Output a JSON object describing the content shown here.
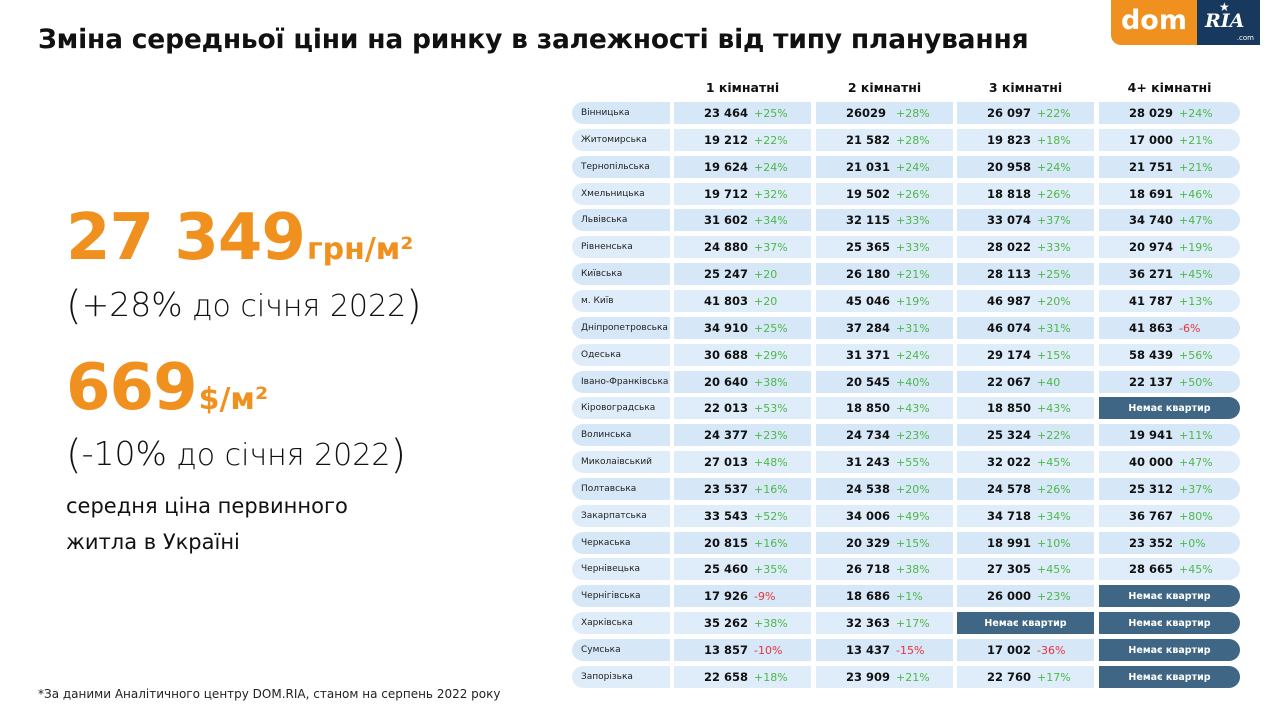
{
  "header": {
    "title": "Зміна середньої ціни на ринку в залежності від типу планування",
    "logo": {
      "left": "dom",
      "right": "RIA",
      "suffix": ".com"
    }
  },
  "summary": {
    "uah_value": "27 349",
    "uah_unit": "грн/м²",
    "uah_change": "(+28% до січня 2022)",
    "uah_change_pct": "+28%",
    "uah_change_text": "до січня 2022",
    "usd_value": "669",
    "usd_unit": "$/м²",
    "usd_change_pct": "-10%",
    "usd_change_text": "до січня 2022",
    "description_line1": "середня ціна первинного",
    "description_line2": "житла в Україні"
  },
  "footnote": "*За даними Аналітичного центру DOM.RIA, станом на серпень 2022 року",
  "colors": {
    "accent": "#f0901e",
    "positive": "#4cb848",
    "negative": "#e8323c",
    "row_bg": "#d8e8f8",
    "na_bg": "#3f6685",
    "logo_dark": "#18395e"
  },
  "na_label": "Немає квартир",
  "chart_data": {
    "type": "table",
    "title": "Зміна середньої ціни на ринку в залежності від типу планування",
    "unit": "грн/м²",
    "columns": [
      "1 кімнатні",
      "2 кімнатні",
      "3 кімнатні",
      "4+ кімнатні"
    ],
    "rows": [
      {
        "region": "Вінницька",
        "cells": [
          [
            "23 464",
            "+25%"
          ],
          [
            "26029",
            "+28%"
          ],
          [
            "26 097",
            "+22%"
          ],
          [
            "28 029",
            "+24%"
          ]
        ]
      },
      {
        "region": "Житомирська",
        "cells": [
          [
            "19 212",
            "+22%"
          ],
          [
            "21 582",
            "+28%"
          ],
          [
            "19 823",
            "+18%"
          ],
          [
            "17 000",
            "+21%"
          ]
        ]
      },
      {
        "region": "Тернопільська",
        "cells": [
          [
            "19  624",
            "+24%"
          ],
          [
            "21 031",
            "+24%"
          ],
          [
            "20 958",
            "+24%"
          ],
          [
            "21 751",
            "+21%"
          ]
        ]
      },
      {
        "region": "Хмельницька",
        "cells": [
          [
            "19 712",
            "+32%"
          ],
          [
            "19 502",
            "+26%"
          ],
          [
            "18 818",
            "+26%"
          ],
          [
            "18 691",
            "+46%"
          ]
        ]
      },
      {
        "region": "Львівська",
        "cells": [
          [
            "31 602",
            "+34%"
          ],
          [
            "32 115",
            "+33%"
          ],
          [
            "33 074",
            "+37%"
          ],
          [
            "34 740",
            "+47%"
          ]
        ]
      },
      {
        "region": "Рівненська",
        "cells": [
          [
            "24 880",
            "+37%"
          ],
          [
            "25 365",
            "+33%"
          ],
          [
            "28 022",
            "+33%"
          ],
          [
            "20 974",
            "+19%"
          ]
        ]
      },
      {
        "region": "Київська",
        "cells": [
          [
            "25 247",
            "+20"
          ],
          [
            "26 180",
            "+21%"
          ],
          [
            "28 113",
            "+25%"
          ],
          [
            "36 271",
            "+45%"
          ]
        ]
      },
      {
        "region": "м. Київ",
        "cells": [
          [
            "41 803",
            "+20"
          ],
          [
            "45 046",
            "+19%"
          ],
          [
            "46 987",
            "+20%"
          ],
          [
            "41 787",
            "+13%"
          ]
        ]
      },
      {
        "region": "Дніпропетровська",
        "cells": [
          [
            "34 910",
            "+25%"
          ],
          [
            "37 284",
            "+31%"
          ],
          [
            "46 074",
            "+31%"
          ],
          [
            "41 863",
            "-6%"
          ]
        ]
      },
      {
        "region": "Одеська",
        "cells": [
          [
            "30 688",
            "+29%"
          ],
          [
            "31 371",
            "+24%"
          ],
          [
            "29 174",
            "+15%"
          ],
          [
            "58 439",
            "+56%"
          ]
        ]
      },
      {
        "region": "Івано-Франківська",
        "cells": [
          [
            "20 640",
            "+38%"
          ],
          [
            "20 545",
            "+40%"
          ],
          [
            "22 067",
            "+40"
          ],
          [
            "22 137",
            "+50%"
          ]
        ]
      },
      {
        "region": "Кіровоградська",
        "cells": [
          [
            "22 013",
            "+53%"
          ],
          [
            "18 850",
            "+43%"
          ],
          [
            "18 850",
            "+43%"
          ],
          null
        ]
      },
      {
        "region": "Волинська",
        "cells": [
          [
            "24 377",
            "+23%"
          ],
          [
            "24 734",
            "+23%"
          ],
          [
            "25 324",
            "+22%"
          ],
          [
            "19 941",
            "+11%"
          ]
        ]
      },
      {
        "region": "Миколаівський",
        "cells": [
          [
            "27 013",
            "+48%"
          ],
          [
            "31 243",
            "+55%"
          ],
          [
            "32 022",
            "+45%"
          ],
          [
            "40 000",
            "+47%"
          ]
        ]
      },
      {
        "region": "Полтавська",
        "cells": [
          [
            "23 537",
            "+16%"
          ],
          [
            "24 538",
            "+20%"
          ],
          [
            "24 578",
            "+26%"
          ],
          [
            "25 312",
            "+37%"
          ]
        ]
      },
      {
        "region": "Закарпатська",
        "cells": [
          [
            "33 543",
            "+52%"
          ],
          [
            "34 006",
            "+49%"
          ],
          [
            "34 718",
            "+34%"
          ],
          [
            "36 767",
            "+80%"
          ]
        ]
      },
      {
        "region": "Черкаська",
        "cells": [
          [
            "20 815",
            "+16%"
          ],
          [
            "20 329",
            "+15%"
          ],
          [
            "18 991",
            "+10%"
          ],
          [
            "23 352",
            "+0%"
          ]
        ]
      },
      {
        "region": "Чернівецька",
        "cells": [
          [
            "25 460",
            "+35%"
          ],
          [
            "26 718",
            "+38%"
          ],
          [
            "27 305",
            "+45%"
          ],
          [
            "28 665",
            "+45%"
          ]
        ]
      },
      {
        "region": "Чернігівська",
        "cells": [
          [
            "17 926",
            "-9%"
          ],
          [
            "18 686",
            "+1%"
          ],
          [
            "26 000",
            "+23%"
          ],
          null
        ]
      },
      {
        "region": "Харківська",
        "cells": [
          [
            "35 262",
            "+38%"
          ],
          [
            "32 363",
            "+17%"
          ],
          null,
          null
        ]
      },
      {
        "region": "Сумська",
        "cells": [
          [
            "13 857",
            "-10%"
          ],
          [
            "13 437",
            "-15%"
          ],
          [
            "17 002",
            "-36%"
          ],
          null
        ]
      },
      {
        "region": "Запорізька",
        "cells": [
          [
            "22 658",
            "+18%"
          ],
          [
            "23 909",
            "+21%"
          ],
          [
            "22 760",
            "+17%"
          ],
          null
        ]
      }
    ]
  }
}
